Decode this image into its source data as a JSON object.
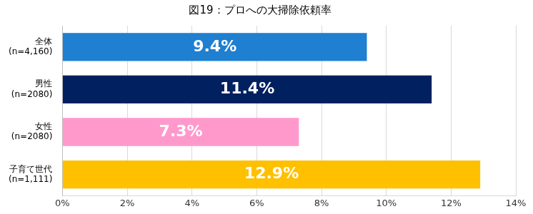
{
  "chart_data": {
    "type": "bar",
    "title": "図19：プロへの大掃除依頼率",
    "orientation": "horizontal",
    "categories": [
      "全体\n(n=4,160)",
      "男性\n(n=2080)",
      "女性\n(n=2080)",
      "子育て世代\n(n=1,111)"
    ],
    "values": [
      9.4,
      11.4,
      7.3,
      12.9
    ],
    "value_labels": [
      "9.4%",
      "11.4%",
      "7.3%",
      "12.9%"
    ],
    "colors": [
      "#1f7fd0",
      "#002060",
      "#ff99cc",
      "#ffc000"
    ],
    "xlim": [
      0,
      14
    ],
    "xticks": [
      {
        "value": 0,
        "label": "0%"
      },
      {
        "value": 2,
        "label": "2%"
      },
      {
        "value": 4,
        "label": "4%"
      },
      {
        "value": 6,
        "label": "6%"
      },
      {
        "value": 8,
        "label": "8%"
      },
      {
        "value": 10,
        "label": "10%"
      },
      {
        "value": 12,
        "label": "12%"
      },
      {
        "value": 14,
        "label": "14%"
      }
    ],
    "grid": true,
    "data_labels": true
  }
}
